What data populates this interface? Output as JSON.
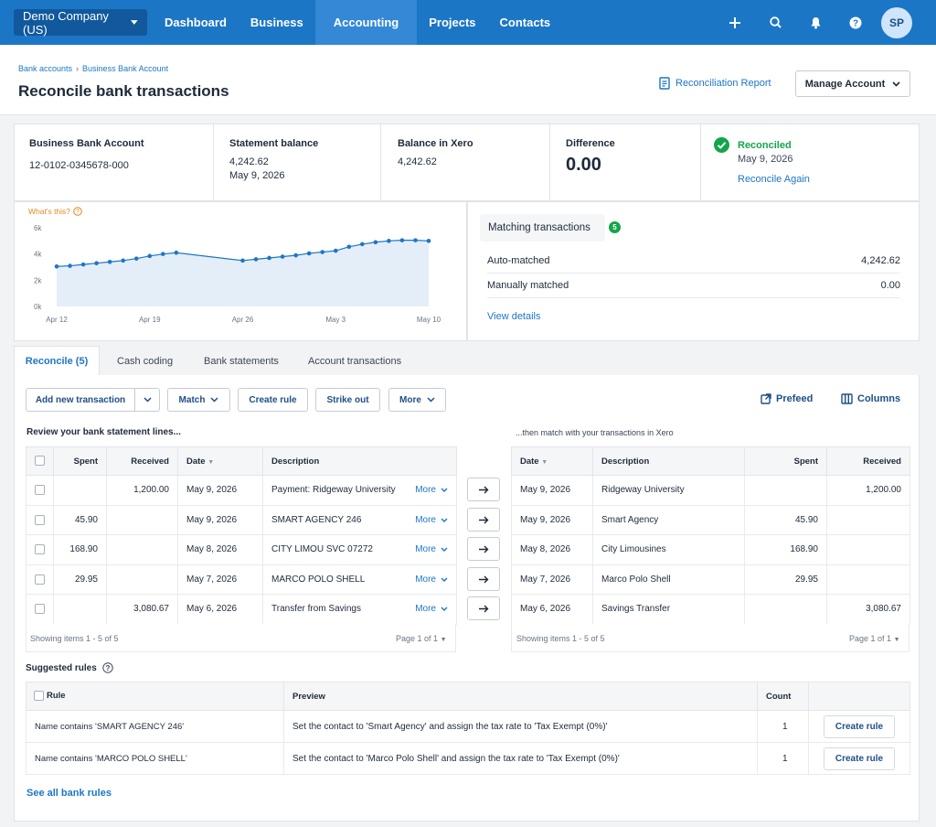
{
  "topbar": {
    "org": "Demo Company (US)",
    "nav": [
      "Dashboard",
      "Business",
      "Accounting",
      "Projects",
      "Contacts"
    ],
    "avatar": "SP"
  },
  "header": {
    "breadcrumb": [
      "Bank accounts",
      "Business Bank Account"
    ],
    "title": "Reconcile bank transactions",
    "report_link": "Reconciliation Report",
    "manage_button": "Manage Account"
  },
  "summary": {
    "account_label": "Business Bank Account",
    "account_number": "12-0102-0345678-000",
    "statement_label": "Statement balance",
    "statement_value": "4,242.62",
    "statement_date": "May 9, 2026",
    "xero_label": "Balance in Xero",
    "xero_value": "4,242.62",
    "difference_label": "Difference",
    "difference_value": "0.00",
    "status": "Reconciled",
    "status_date": "May 9, 2026",
    "reconcile_again": "Reconcile Again",
    "status_color": "#13a54a"
  },
  "chart_data": {
    "type": "area",
    "help_text": "What's this?",
    "x_ticks": [
      "Apr 12",
      "Apr 19",
      "Apr 26",
      "May 3",
      "May 10"
    ],
    "y_ticks": [
      "6k",
      "4k",
      "2k",
      "0k"
    ],
    "ylim": [
      0,
      6000
    ],
    "x": [
      "Apr 12",
      "Apr 13",
      "Apr 14",
      "Apr 15",
      "Apr 16",
      "Apr 17",
      "Apr 18",
      "Apr 19",
      "Apr 20",
      "Apr 21",
      "Apr 26",
      "Apr 27",
      "Apr 28",
      "Apr 29",
      "Apr 30",
      "May 1",
      "May 2",
      "May 3",
      "May 4",
      "May 5",
      "May 6",
      "May 7",
      "May 8",
      "May 9",
      "May 10"
    ],
    "values": [
      3050,
      3100,
      3200,
      3300,
      3400,
      3500,
      3650,
      3850,
      4000,
      4100,
      3500,
      3600,
      3700,
      3800,
      3900,
      4050,
      4150,
      4250,
      4550,
      4750,
      4900,
      5000,
      5050,
      5050,
      5000
    ],
    "line_color": "#1c76c6",
    "fill_color": "#e4eef9"
  },
  "matching": {
    "title": "Matching transactions",
    "count": "5",
    "rows": [
      {
        "label": "Auto-matched",
        "value": "4,242.62"
      },
      {
        "label": "Manually matched",
        "value": "0.00"
      }
    ],
    "view_details": "View details"
  },
  "tabs": [
    "Reconcile (5)",
    "Cash coding",
    "Bank statements",
    "Account transactions"
  ],
  "toolbar": {
    "add_new": "Add new transaction",
    "match": "Match",
    "create_rule": "Create rule",
    "strike_out": "Strike out",
    "more": "More",
    "prefeed": "Prefeed",
    "columns": "Columns"
  },
  "left_table": {
    "heading": "Review your bank statement lines...",
    "columns": [
      "Spent",
      "Received",
      "Date",
      "Description"
    ],
    "more_label": "More",
    "rows": [
      {
        "spent": "",
        "received": "1,200.00",
        "date": "May 9, 2026",
        "desc": "Payment: Ridgeway University"
      },
      {
        "spent": "45.90",
        "received": "",
        "date": "May 9, 2026",
        "desc": "SMART AGENCY 246"
      },
      {
        "spent": "168.90",
        "received": "",
        "date": "May 8, 2026",
        "desc": "CITY LIMOU SVC 07272"
      },
      {
        "spent": "29.95",
        "received": "",
        "date": "May 7, 2026",
        "desc": "MARCO POLO SHELL"
      },
      {
        "spent": "",
        "received": "3,080.67",
        "date": "May 6, 2026",
        "desc": "Transfer from Savings"
      }
    ],
    "footer_left": "Showing items 1 - 5 of 5",
    "footer_right": "Page 1 of 1"
  },
  "right_table": {
    "heading": "...then match with your transactions in Xero",
    "columns": [
      "Date",
      "Description",
      "Spent",
      "Received"
    ],
    "rows": [
      {
        "date": "May 9, 2026",
        "desc": "Ridgeway University",
        "spent": "",
        "received": "1,200.00"
      },
      {
        "date": "May 9, 2026",
        "desc": "Smart Agency",
        "spent": "45.90",
        "received": ""
      },
      {
        "date": "May 8, 2026",
        "desc": "City Limousines",
        "spent": "168.90",
        "received": ""
      },
      {
        "date": "May 7, 2026",
        "desc": "Marco Polo Shell",
        "spent": "29.95",
        "received": ""
      },
      {
        "date": "May 6, 2026",
        "desc": "Savings Transfer",
        "spent": "",
        "received": "3,080.67"
      }
    ],
    "footer_left": "Showing items 1 - 5 of 5",
    "footer_right": "Page 1 of 1"
  },
  "rules": {
    "heading": "Suggested rules",
    "columns": [
      "Rule",
      "Preview",
      "Count"
    ],
    "rows": [
      {
        "rule": "Name contains 'SMART AGENCY 246'",
        "preview": "Set the contact to 'Smart Agency' and assign the tax rate to 'Tax Exempt (0%)'",
        "count": "1",
        "action": "Create rule"
      },
      {
        "rule": "Name contains 'MARCO POLO SHELL'",
        "preview": "Set the contact to 'Marco Polo Shell' and assign the tax rate to 'Tax Exempt (0%)'",
        "count": "1",
        "action": "Create rule"
      }
    ],
    "see_all": "See all bank rules"
  }
}
